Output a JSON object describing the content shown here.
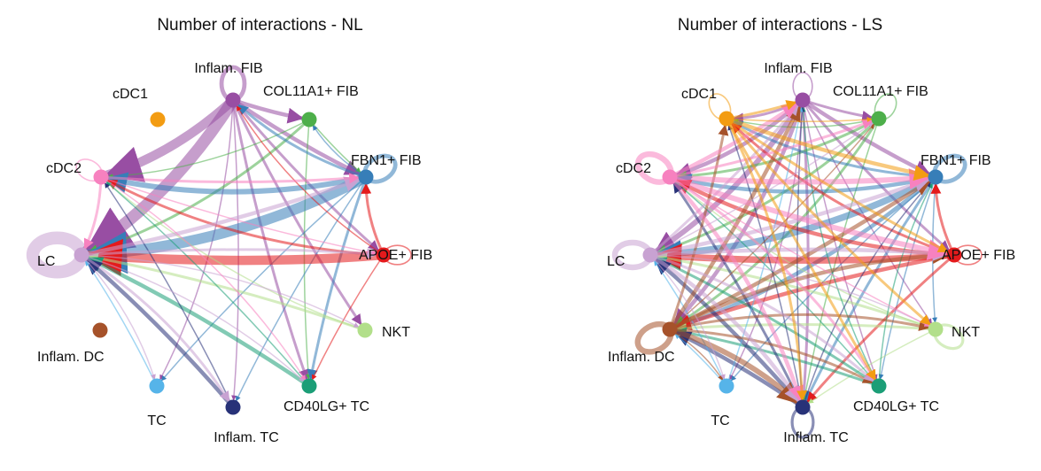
{
  "cell_types": [
    {
      "id": "inflam_fib",
      "label": "Inflam. FIB",
      "color": "#984ea3"
    },
    {
      "id": "col11a1_fib",
      "label": "COL11A1+ FIB",
      "color": "#4daf4a"
    },
    {
      "id": "fbn1_fib",
      "label": "FBN1+ FIB",
      "color": "#377eb8"
    },
    {
      "id": "apoe_fib",
      "label": "APOE+ FIB",
      "color": "#e41a1c"
    },
    {
      "id": "nkt",
      "label": "NKT",
      "color": "#b2df8a"
    },
    {
      "id": "cd40lg_tc",
      "label": "CD40LG+ TC",
      "color": "#1b9e77"
    },
    {
      "id": "inflam_tc",
      "label": "Inflam. TC",
      "color": "#283278"
    },
    {
      "id": "tc",
      "label": "TC",
      "color": "#56b4e9"
    },
    {
      "id": "inflam_dc",
      "label": "Inflam. DC",
      "color": "#a6522a"
    },
    {
      "id": "lc",
      "label": "LC",
      "color": "#c8a2d2"
    },
    {
      "id": "cdc2",
      "label": "cDC2",
      "color": "#f781bf"
    },
    {
      "id": "cdc1",
      "label": "cDC1",
      "color": "#f39c12"
    }
  ],
  "panels": [
    {
      "id": "nl",
      "title": "Number of interactions - NL",
      "edges": [
        [
          "inflam_fib",
          "cdc2",
          7
        ],
        [
          "inflam_fib",
          "lc",
          9
        ],
        [
          "inflam_fib",
          "col11a1_fib",
          3
        ],
        [
          "inflam_fib",
          "fbn1_fib",
          3
        ],
        [
          "inflam_fib",
          "apoe_fib",
          2
        ],
        [
          "inflam_fib",
          "nkt",
          2
        ],
        [
          "inflam_fib",
          "cd40lg_tc",
          2
        ],
        [
          "inflam_fib",
          "inflam_tc",
          1
        ],
        [
          "inflam_fib",
          "tc",
          1
        ],
        [
          "col11a1_fib",
          "cdc2",
          1
        ],
        [
          "col11a1_fib",
          "lc",
          2
        ],
        [
          "col11a1_fib",
          "fbn1_fib",
          1
        ],
        [
          "col11a1_fib",
          "cd40lg_tc",
          1
        ],
        [
          "fbn1_fib",
          "lc",
          8
        ],
        [
          "fbn1_fib",
          "cdc2",
          4
        ],
        [
          "fbn1_fib",
          "inflam_fib",
          2
        ],
        [
          "fbn1_fib",
          "col11a1_fib",
          1
        ],
        [
          "fbn1_fib",
          "cd40lg_tc",
          2
        ],
        [
          "fbn1_fib",
          "inflam_tc",
          1
        ],
        [
          "fbn1_fib",
          "tc",
          1
        ],
        [
          "apoe_fib",
          "lc",
          7
        ],
        [
          "apoe_fib",
          "cdc2",
          2
        ],
        [
          "apoe_fib",
          "inflam_fib",
          1
        ],
        [
          "apoe_fib",
          "cd40lg_tc",
          1
        ],
        [
          "apoe_fib",
          "fbn1_fib",
          2
        ],
        [
          "nkt",
          "lc",
          2
        ],
        [
          "nkt",
          "cdc2",
          1
        ],
        [
          "cd40lg_tc",
          "lc",
          3
        ],
        [
          "cd40lg_tc",
          "cdc2",
          1
        ],
        [
          "inflam_tc",
          "lc",
          3
        ],
        [
          "inflam_tc",
          "cdc2",
          1
        ],
        [
          "tc",
          "lc",
          1
        ],
        [
          "lc",
          "fbn1_fib",
          3
        ],
        [
          "lc",
          "apoe_fib",
          2
        ],
        [
          "lc",
          "inflam_tc",
          2
        ],
        [
          "lc",
          "tc",
          1
        ],
        [
          "lc",
          "cd40lg_tc",
          1
        ],
        [
          "lc",
          "nkt",
          1
        ],
        [
          "cdc2",
          "fbn1_fib",
          2
        ],
        [
          "cdc2",
          "apoe_fib",
          1
        ],
        [
          "cdc2",
          "lc",
          2
        ],
        [
          "cdc2",
          "cd40lg_tc",
          1
        ]
      ],
      "self_loops": [
        [
          "inflam_fib",
          3
        ],
        [
          "fbn1_fib",
          3
        ],
        [
          "apoe_fib",
          1
        ],
        [
          "lc",
          9
        ],
        [
          "cdc2",
          1
        ]
      ]
    },
    {
      "id": "ls",
      "title": "Number of interactions - LS",
      "edges": [
        [
          "inflam_fib",
          "cdc2",
          3
        ],
        [
          "inflam_fib",
          "lc",
          4
        ],
        [
          "inflam_fib",
          "inflam_dc",
          3
        ],
        [
          "inflam_fib",
          "cdc1",
          2
        ],
        [
          "inflam_fib",
          "col11a1_fib",
          2
        ],
        [
          "inflam_fib",
          "fbn1_fib",
          3
        ],
        [
          "inflam_fib",
          "apoe_fib",
          2
        ],
        [
          "inflam_fib",
          "nkt",
          1
        ],
        [
          "inflam_fib",
          "cd40lg_tc",
          1
        ],
        [
          "inflam_fib",
          "inflam_tc",
          2
        ],
        [
          "inflam_fib",
          "tc",
          1
        ],
        [
          "col11a1_fib",
          "cdc2",
          2
        ],
        [
          "col11a1_fib",
          "lc",
          2
        ],
        [
          "col11a1_fib",
          "inflam_dc",
          2
        ],
        [
          "col11a1_fib",
          "cdc1",
          1
        ],
        [
          "col11a1_fib",
          "inflam_tc",
          1
        ],
        [
          "fbn1_fib",
          "lc",
          5
        ],
        [
          "fbn1_fib",
          "cdc2",
          3
        ],
        [
          "fbn1_fib",
          "inflam_dc",
          3
        ],
        [
          "fbn1_fib",
          "cdc1",
          2
        ],
        [
          "fbn1_fib",
          "inflam_tc",
          2
        ],
        [
          "fbn1_fib",
          "cd40lg_tc",
          1
        ],
        [
          "fbn1_fib",
          "nkt",
          1
        ],
        [
          "fbn1_fib",
          "tc",
          1
        ],
        [
          "apoe_fib",
          "lc",
          5
        ],
        [
          "apoe_fib",
          "cdc2",
          3
        ],
        [
          "apoe_fib",
          "inflam_dc",
          3
        ],
        [
          "apoe_fib",
          "cdc1",
          2
        ],
        [
          "apoe_fib",
          "inflam_tc",
          2
        ],
        [
          "apoe_fib",
          "fbn1_fib",
          2
        ],
        [
          "nkt",
          "lc",
          2
        ],
        [
          "nkt",
          "inflam_dc",
          2
        ],
        [
          "nkt",
          "cdc2",
          1
        ],
        [
          "nkt",
          "inflam_tc",
          1
        ],
        [
          "cd40lg_tc",
          "lc",
          2
        ],
        [
          "cd40lg_tc",
          "inflam_dc",
          2
        ],
        [
          "cd40lg_tc",
          "cdc2",
          1
        ],
        [
          "cd40lg_tc",
          "inflam_fib",
          1
        ],
        [
          "cd40lg_tc",
          "fbn1_fib",
          1
        ],
        [
          "inflam_tc",
          "lc",
          3
        ],
        [
          "inflam_tc",
          "inflam_dc",
          3
        ],
        [
          "inflam_tc",
          "cdc2",
          2
        ],
        [
          "inflam_tc",
          "cdc1",
          1
        ],
        [
          "inflam_tc",
          "fbn1_fib",
          1
        ],
        [
          "inflam_tc",
          "inflam_fib",
          1
        ],
        [
          "tc",
          "lc",
          1
        ],
        [
          "tc",
          "inflam_dc",
          1
        ],
        [
          "tc",
          "inflam_fib",
          1
        ],
        [
          "inflam_dc",
          "inflam_tc",
          4
        ],
        [
          "inflam_dc",
          "fbn1_fib",
          3
        ],
        [
          "inflam_dc",
          "apoe_fib",
          3
        ],
        [
          "inflam_dc",
          "inflam_fib",
          3
        ],
        [
          "inflam_dc",
          "cdc1",
          2
        ],
        [
          "inflam_dc",
          "cd40lg_tc",
          2
        ],
        [
          "inflam_dc",
          "nkt",
          2
        ],
        [
          "inflam_dc",
          "col11a1_fib",
          1
        ],
        [
          "inflam_dc",
          "tc",
          1
        ],
        [
          "lc",
          "fbn1_fib",
          3
        ],
        [
          "lc",
          "apoe_fib",
          3
        ],
        [
          "lc",
          "inflam_tc",
          3
        ],
        [
          "lc",
          "inflam_fib",
          2
        ],
        [
          "lc",
          "cd40lg_tc",
          2
        ],
        [
          "lc",
          "nkt",
          1
        ],
        [
          "lc",
          "tc",
          1
        ],
        [
          "lc",
          "col11a1_fib",
          1
        ],
        [
          "cdc2",
          "fbn1_fib",
          4
        ],
        [
          "cdc2",
          "apoe_fib",
          4
        ],
        [
          "cdc2",
          "inflam_fib",
          3
        ],
        [
          "cdc2",
          "inflam_tc",
          3
        ],
        [
          "cdc2",
          "cd40lg_tc",
          2
        ],
        [
          "cdc2",
          "nkt",
          1
        ],
        [
          "cdc2",
          "col11a1_fib",
          2
        ],
        [
          "cdc1",
          "fbn1_fib",
          3
        ],
        [
          "cdc1",
          "apoe_fib",
          2
        ],
        [
          "cdc1",
          "inflam_fib",
          2
        ],
        [
          "cdc1",
          "inflam_tc",
          2
        ],
        [
          "cdc1",
          "cd40lg_tc",
          2
        ],
        [
          "cdc1",
          "nkt",
          2
        ],
        [
          "cdc1",
          "col11a1_fib",
          1
        ]
      ],
      "self_loops": [
        [
          "inflam_fib",
          1
        ],
        [
          "col11a1_fib",
          1
        ],
        [
          "fbn1_fib",
          3
        ],
        [
          "apoe_fib",
          1
        ],
        [
          "nkt",
          2
        ],
        [
          "inflam_tc",
          2
        ],
        [
          "inflam_dc",
          4
        ],
        [
          "lc",
          4
        ],
        [
          "cdc2",
          4
        ],
        [
          "cdc1",
          1
        ]
      ]
    }
  ]
}
